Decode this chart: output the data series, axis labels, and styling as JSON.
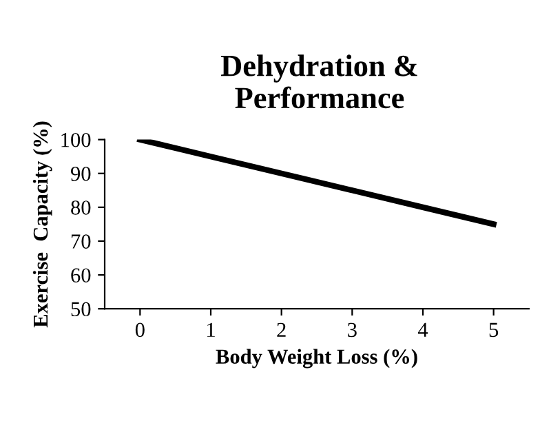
{
  "chart_data": {
    "type": "line",
    "title": "Dehydration &\nPerformance",
    "xlabel": "Body Weight Loss (%)",
    "ylabel": "Exercise  Capacity (%)",
    "categories": [
      "0",
      "1",
      "2",
      "3",
      "4",
      "5"
    ],
    "series": [
      {
        "color": "#000000",
        "values": [
          100,
          95,
          90,
          85,
          80,
          75
        ]
      }
    ],
    "ylim": [
      50,
      100
    ],
    "yticks": [
      50,
      60,
      70,
      80,
      90,
      100
    ],
    "grid": false,
    "legend": false,
    "marker": "none",
    "line_style": "solid"
  }
}
